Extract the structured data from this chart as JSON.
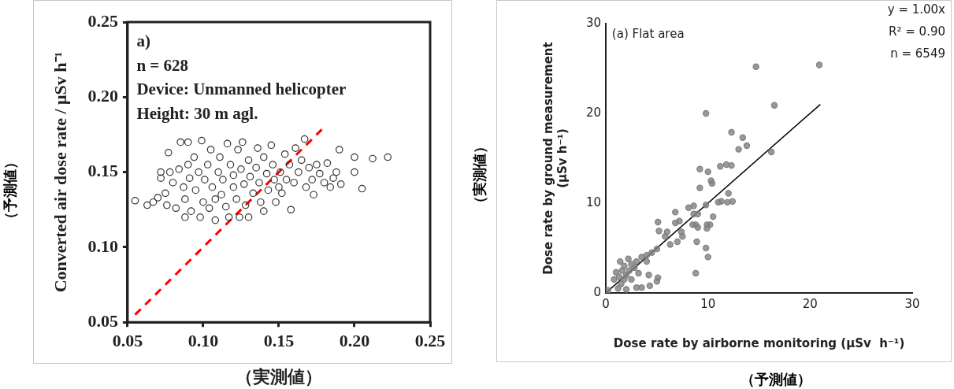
{
  "chart_data": [
    {
      "type": "scatter",
      "ylabel": "Converted air dose rate / μSv h⁻¹",
      "xlabel": "（実測値）",
      "xlim": [
        0.05,
        0.25
      ],
      "xticks": [
        0.05,
        {
          "value": 0.1,
          "label": "0.10"
        },
        0.15,
        {
          "value": 0.2,
          "label": "0.20"
        },
        0.25
      ],
      "ylim": [
        0.05,
        0.25
      ],
      "yticks": [
        0.05,
        {
          "value": 0.1,
          "label": "0.10"
        },
        0.15,
        {
          "value": 0.2,
          "label": "0.20"
        },
        0.25
      ],
      "marker": "circle",
      "grid": false,
      "annotations": [
        "a)",
        "n = 628",
        "Device: Unmanned helicopter",
        "Height: 30 m agl.",
        "（予測値）"
      ],
      "series": [
        {
          "color": "#333333",
          "x": [
            0.055,
            0.063,
            0.067,
            0.07,
            0.072,
            0.072,
            0.075,
            0.077,
            0.078,
            0.076,
            0.08,
            0.082,
            0.084,
            0.085,
            0.087,
            0.088,
            0.088,
            0.09,
            0.09,
            0.091,
            0.092,
            0.094,
            0.095,
            0.097,
            0.098,
            0.099,
            0.1,
            0.101,
            0.103,
            0.104,
            0.105,
            0.106,
            0.108,
            0.108,
            0.11,
            0.111,
            0.112,
            0.113,
            0.115,
            0.116,
            0.117,
            0.118,
            0.12,
            0.12,
            0.122,
            0.123,
            0.124,
            0.125,
            0.126,
            0.127,
            0.128,
            0.13,
            0.13,
            0.131,
            0.133,
            0.135,
            0.136,
            0.137,
            0.138,
            0.14,
            0.14,
            0.142,
            0.143,
            0.145,
            0.146,
            0.147,
            0.148,
            0.15,
            0.151,
            0.152,
            0.154,
            0.155,
            0.157,
            0.158,
            0.16,
            0.161,
            0.163,
            0.165,
            0.167,
            0.168,
            0.17,
            0.172,
            0.173,
            0.175,
            0.177,
            0.18,
            0.182,
            0.184,
            0.186,
            0.188,
            0.19,
            0.191,
            0.2,
            0.2,
            0.205,
            0.212,
            0.222
          ],
          "values": [
            0.131,
            0.128,
            0.13,
            0.133,
            0.15,
            0.146,
            0.136,
            0.163,
            0.15,
            0.128,
            0.143,
            0.126,
            0.152,
            0.17,
            0.14,
            0.12,
            0.132,
            0.17,
            0.155,
            0.146,
            0.124,
            0.16,
            0.138,
            0.15,
            0.12,
            0.171,
            0.13,
            0.145,
            0.155,
            0.126,
            0.165,
            0.14,
            0.132,
            0.118,
            0.15,
            0.16,
            0.135,
            0.145,
            0.127,
            0.169,
            0.12,
            0.155,
            0.14,
            0.148,
            0.132,
            0.165,
            0.12,
            0.152,
            0.17,
            0.142,
            0.128,
            0.12,
            0.158,
            0.147,
            0.136,
            0.153,
            0.166,
            0.143,
            0.13,
            0.124,
            0.16,
            0.149,
            0.138,
            0.168,
            0.155,
            0.145,
            0.13,
            0.14,
            0.15,
            0.136,
            0.162,
            0.145,
            0.155,
            0.125,
            0.143,
            0.166,
            0.15,
            0.158,
            0.172,
            0.14,
            0.153,
            0.145,
            0.135,
            0.155,
            0.149,
            0.143,
            0.156,
            0.14,
            0.146,
            0.15,
            0.165,
            0.142,
            0.15,
            0.16,
            0.139,
            0.159,
            0.16
          ]
        },
        {
          "type": "line",
          "color": "#ff0000",
          "line_style": "dashed",
          "marker": "none",
          "x": [
            0.055,
            0.18
          ],
          "values": [
            0.055,
            0.18
          ]
        }
      ]
    },
    {
      "type": "scatter",
      "xlabel": "Dose rate by airborne monitoring (μSv  h⁻¹)",
      "ylabel": "Dose rate by ground measurement\n(μSv h⁻¹)",
      "xlim": [
        0,
        30
      ],
      "xticks": [
        0,
        10,
        20,
        30
      ],
      "ylim": [
        0,
        30
      ],
      "yticks": [
        0,
        10,
        20,
        30
      ],
      "marker": "circle",
      "grid": false,
      "annotations": [
        "(a) Flat area",
        "y = 1.00x",
        "R² = 0.90",
        "n = 6549",
        "（実測値）",
        "（予測値）"
      ],
      "series": [
        {
          "color": "#808080",
          "x": [
            0.2,
            0.8,
            1.0,
            1.2,
            1.3,
            1.4,
            1.5,
            1.6,
            1.8,
            1.8,
            2.0,
            2.0,
            2.2,
            2.3,
            2.5,
            2.5,
            2.8,
            3.0,
            3.0,
            3.2,
            3.5,
            3.5,
            4.0,
            4.0,
            4.2,
            4.3,
            4.5,
            5.0,
            5.1,
            5.1,
            5.0,
            5.2,
            5.8,
            6.0,
            6.3,
            6.8,
            6.8,
            7.0,
            7.2,
            7.5,
            7.4,
            8.1,
            8.6,
            8.6,
            8.5,
            8.8,
            8.9,
            8.8,
            9.0,
            9.0,
            9.2,
            9.2,
            9.8,
            9.8,
            9.9,
            9.9,
            10.0,
            10.0,
            10.3,
            10.4,
            10.2,
            10.5,
            11.0,
            11.2,
            11.3,
            11.8,
            11.9,
            12.0,
            12.3,
            12.3,
            12.4,
            13.0,
            13.4,
            13.8,
            14.7,
            9.8,
            16.2,
            16.5,
            20.9
          ],
          "values": [
            0.3,
            1.5,
            2.3,
            0.5,
            1.8,
            3.5,
            1.0,
            2.5,
            1.5,
            3.0,
            2.0,
            0.4,
            3.8,
            2.5,
            1.5,
            3.2,
            2.8,
            0.6,
            3.5,
            2.2,
            4.0,
            0.6,
            3.5,
            4.2,
            2.0,
            0.8,
            4.5,
            1.3,
            1.7,
            7.9,
            4.9,
            6.9,
            6.3,
            6.8,
            5.4,
            9.0,
            7.8,
            5.7,
            8.0,
            6.3,
            6.8,
            9.5,
            9.7,
            8.8,
            7.6,
            7.6,
            5.7,
            2.2,
            7.3,
            8.8,
            13.8,
            11.7,
            5.0,
            9.8,
            7.6,
            7.2,
            13.5,
            4.0,
            12.5,
            12.2,
            7.6,
            8.5,
            10.1,
            14.1,
            10.2,
            14.3,
            10.1,
            11.1,
            14.2,
            17.9,
            10.2,
            16.0,
            17.3,
            16.4,
            25.2,
            20.0,
            15.7,
            20.9,
            25.4
          ]
        },
        {
          "type": "line",
          "color": "#000000",
          "line_style": "solid",
          "marker": "none",
          "x": [
            0,
            21
          ],
          "values": [
            0,
            21
          ]
        }
      ]
    }
  ]
}
